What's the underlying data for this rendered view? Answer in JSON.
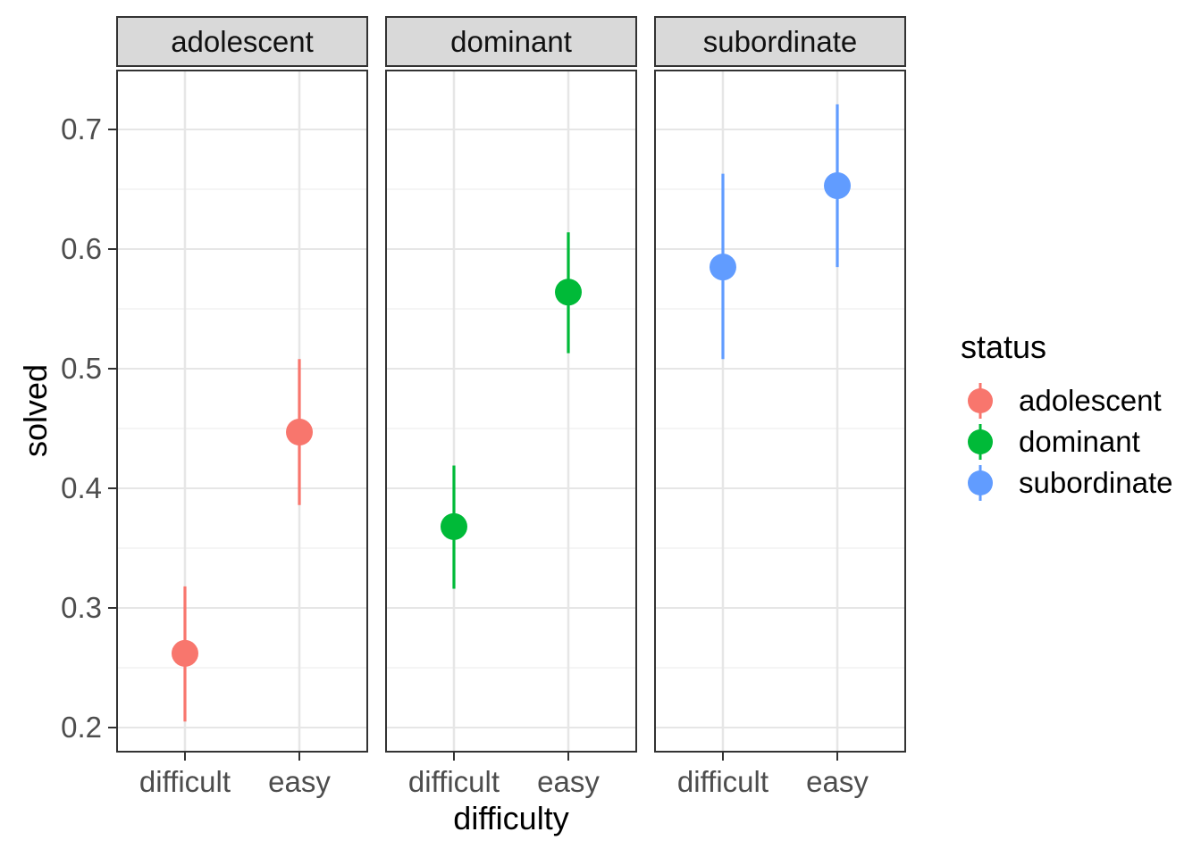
{
  "figure": {
    "background": "#FFFFFF"
  },
  "axes": {
    "y_title": "solved",
    "x_title": "difficulty",
    "y_tick_labels": [
      "0.7",
      "0.6",
      "0.5",
      "0.4",
      "0.3",
      "0.2"
    ],
    "x_tick_labels": [
      "difficult",
      "easy"
    ]
  },
  "legend": {
    "title": "status",
    "items": [
      {
        "label": "adolescent",
        "color": "#F8766D"
      },
      {
        "label": "dominant",
        "color": "#00BA38"
      },
      {
        "label": "subordinate",
        "color": "#619CFF"
      }
    ]
  },
  "style": {
    "strip_fill": "#D9D9D9",
    "strip_border": "#333333",
    "panel_border": "#333333",
    "grid_major": "#E6E6E6",
    "grid_minor": "#F2F2F2",
    "tick_color": "#333333",
    "tick_label_color": "#4D4D4D"
  },
  "chart_data": {
    "type": "pointrange",
    "facet_variable": "status",
    "facets": [
      "adolescent",
      "dominant",
      "subordinate"
    ],
    "x_categories": [
      "difficult",
      "easy"
    ],
    "xlabel": "difficulty",
    "ylabel": "solved",
    "y_ticks": [
      0.2,
      0.3,
      0.4,
      0.5,
      0.6,
      0.7
    ],
    "y_minor_ticks": [
      0.25,
      0.35,
      0.45,
      0.55,
      0.65
    ],
    "y_range": [
      0.179,
      0.75
    ],
    "grid": true,
    "legend_title": "status",
    "legend_position": "right",
    "series": [
      {
        "name": "adolescent",
        "color": "#F8766D",
        "points": [
          {
            "x": "difficult",
            "y": 0.262,
            "ymin": 0.205,
            "ymax": 0.318
          },
          {
            "x": "easy",
            "y": 0.447,
            "ymin": 0.386,
            "ymax": 0.508
          }
        ]
      },
      {
        "name": "dominant",
        "color": "#00BA38",
        "points": [
          {
            "x": "difficult",
            "y": 0.368,
            "ymin": 0.316,
            "ymax": 0.419
          },
          {
            "x": "easy",
            "y": 0.564,
            "ymin": 0.513,
            "ymax": 0.614
          }
        ]
      },
      {
        "name": "subordinate",
        "color": "#619CFF",
        "points": [
          {
            "x": "difficult",
            "y": 0.585,
            "ymin": 0.508,
            "ymax": 0.663
          },
          {
            "x": "easy",
            "y": 0.653,
            "ymin": 0.585,
            "ymax": 0.721
          }
        ]
      }
    ]
  }
}
